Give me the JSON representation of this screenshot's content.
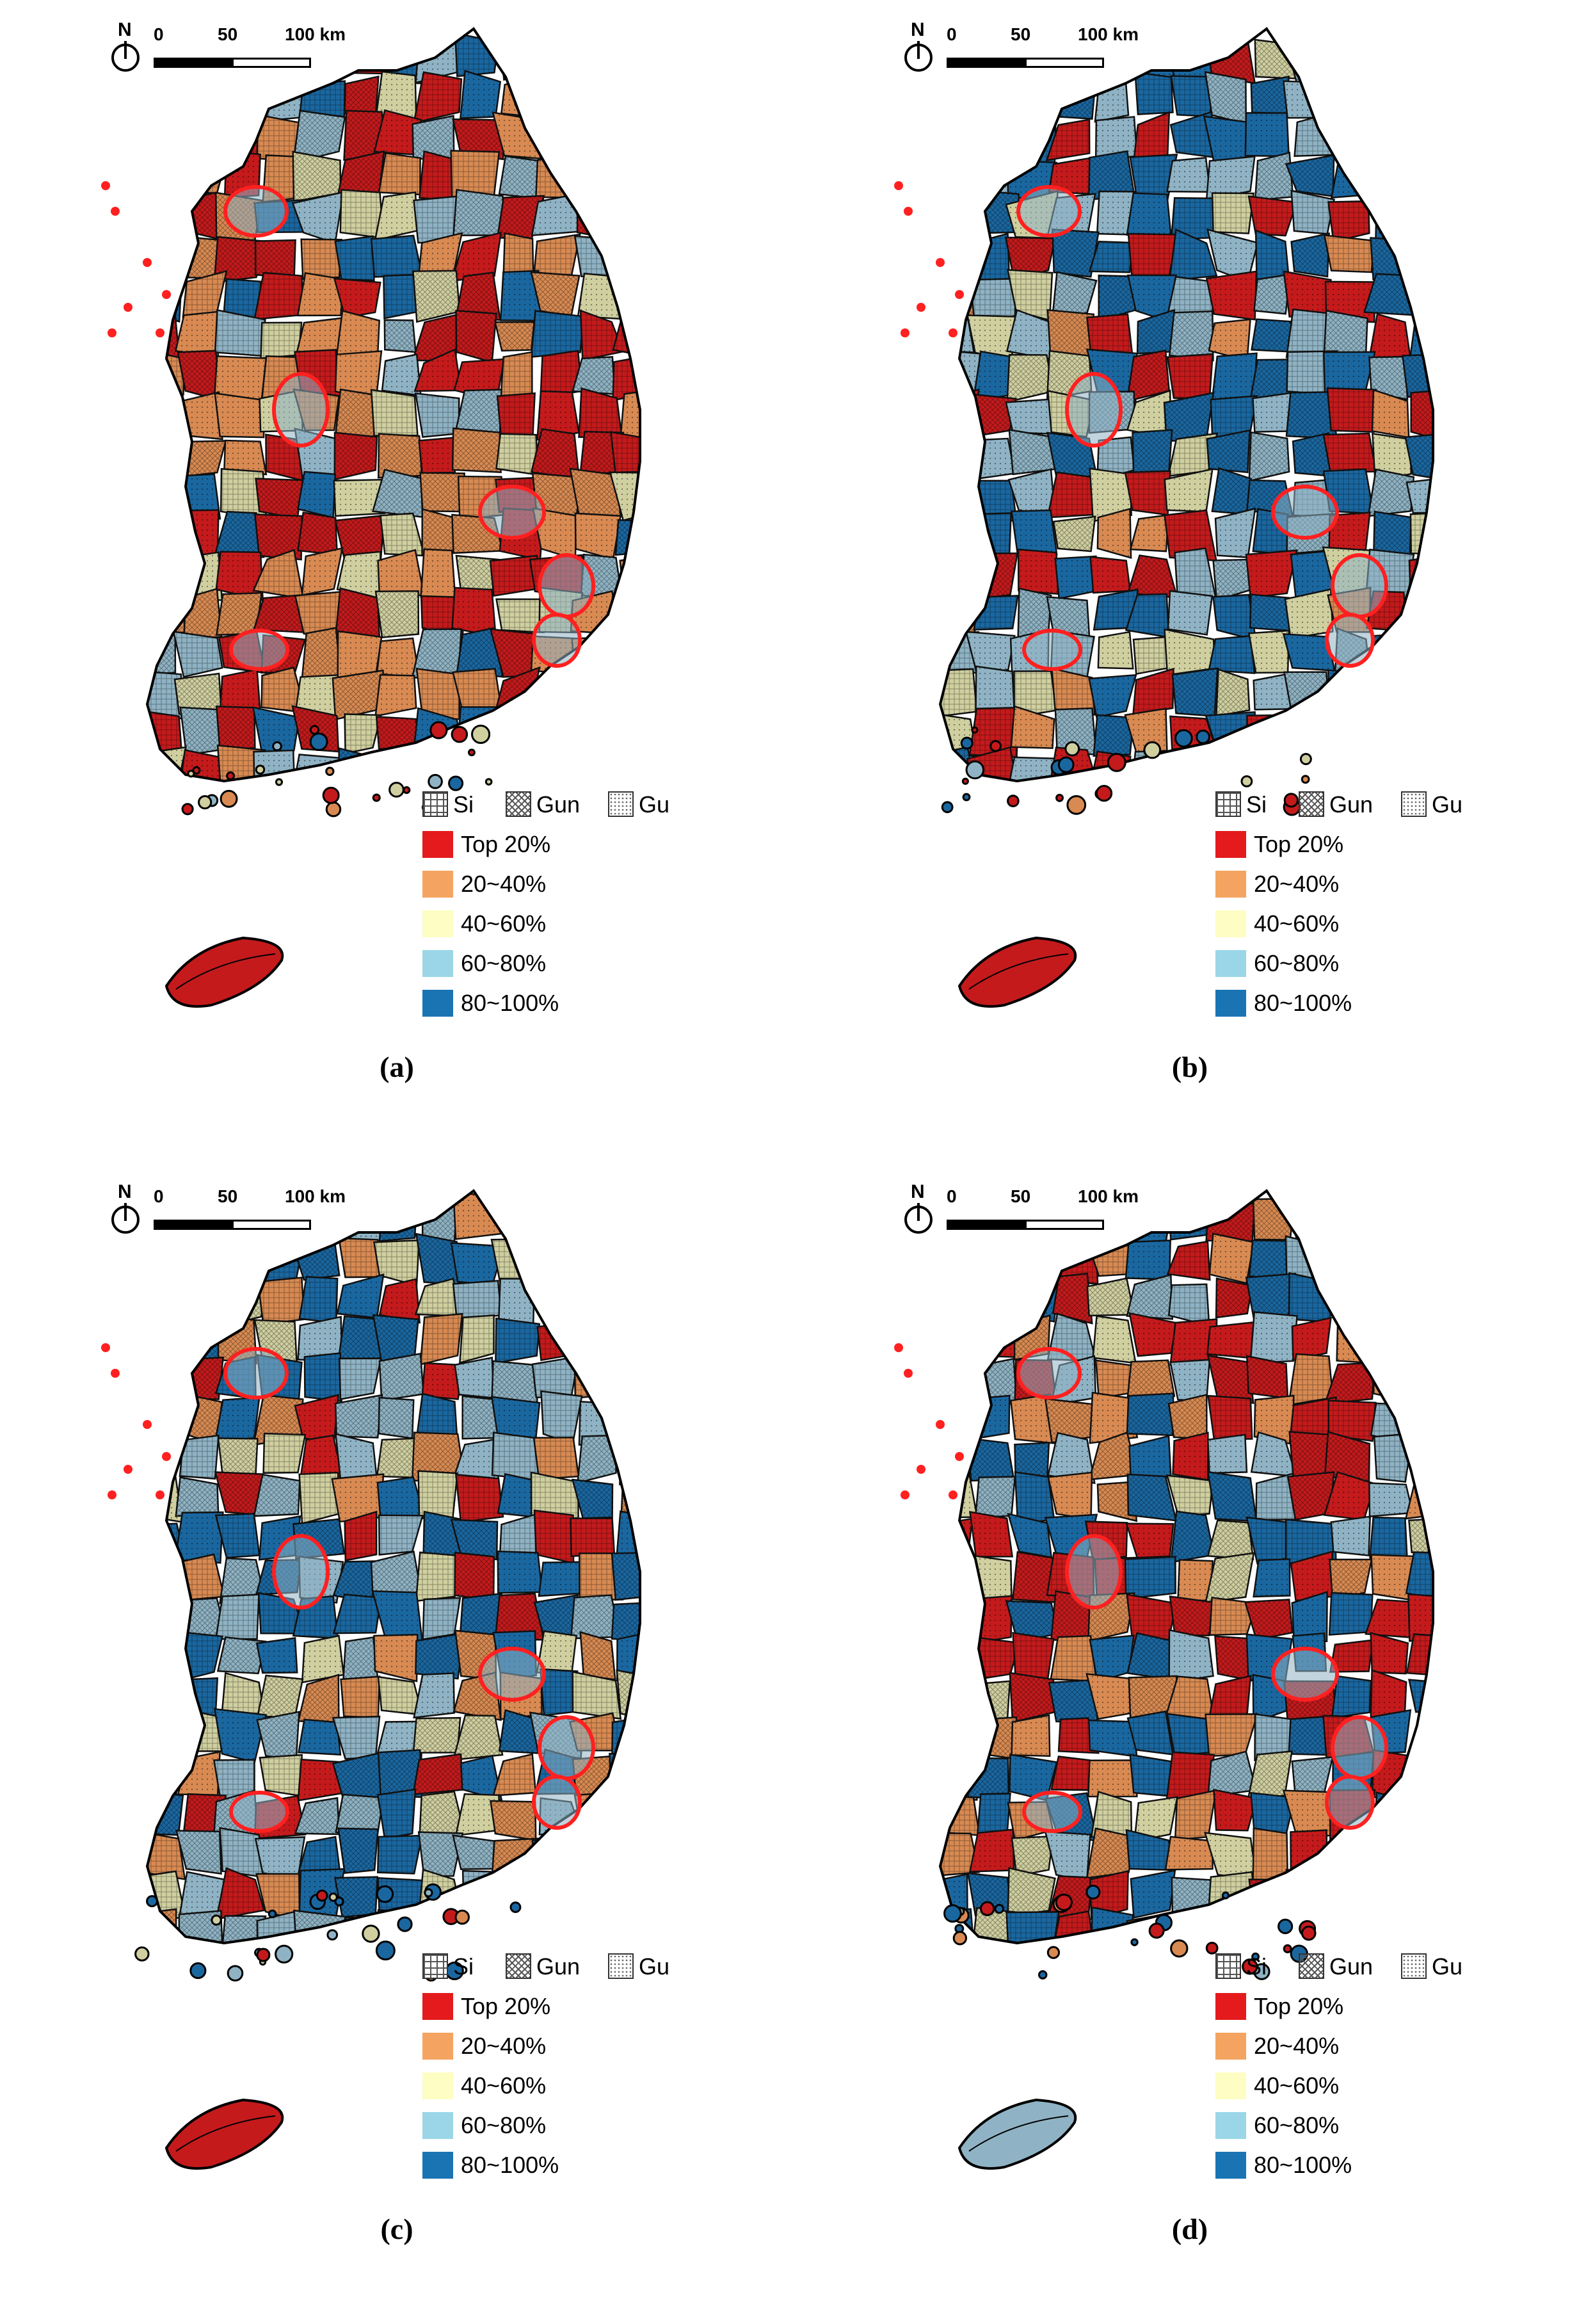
{
  "north_label": "N",
  "scale": {
    "labels": [
      "0",
      "50",
      "100 km"
    ]
  },
  "legend": {
    "patterns": [
      {
        "label": "Si",
        "pattern": "grid"
      },
      {
        "label": "Gun",
        "pattern": "crosshatch"
      },
      {
        "label": "Gu",
        "pattern": "dots"
      }
    ],
    "classes": [
      {
        "label": "Top 20%",
        "color": "#e41a1c"
      },
      {
        "label": "20~40%",
        "color": "#f4a460"
      },
      {
        "label": "40~60%",
        "color": "#fdfdc4"
      },
      {
        "label": "60~80%",
        "color": "#9bd6e8"
      },
      {
        "label": "80~100%",
        "color": "#1a74b4"
      }
    ]
  },
  "map_colors": {
    "Top 20%": "#c41a1c",
    "20~40%": "#d88a52",
    "40~60%": "#cfcfa0",
    "60~80%": "#8fb3c4",
    "80~100%": "#1a67a0"
  },
  "panels": [
    {
      "caption": "(a)",
      "dominant": [
        "Top 20%",
        "20~40%",
        "40~60%",
        "60~80%",
        "80~100%"
      ],
      "jeju": "Top 20%"
    },
    {
      "caption": "(b)",
      "dominant": [
        "80~100%",
        "60~80%",
        "Top 20%",
        "40~60%",
        "20~40%"
      ],
      "jeju": "Top 20%"
    },
    {
      "caption": "(c)",
      "dominant": [
        "80~100%",
        "60~80%",
        "40~60%",
        "20~40%",
        "Top 20%"
      ],
      "jeju": "Top 20%"
    },
    {
      "caption": "(d)",
      "dominant": [
        "Top 20%",
        "80~100%",
        "20~40%",
        "60~80%",
        "40~60%"
      ],
      "jeju": "60~80%"
    }
  ]
}
